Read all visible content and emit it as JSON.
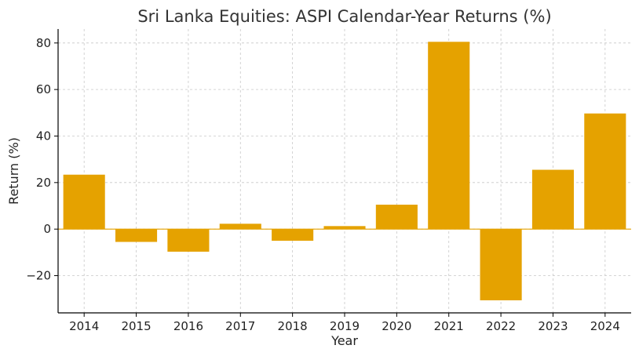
{
  "chart_data": {
    "type": "bar",
    "title": "Sri Lanka Equities: ASPI Calendar-Year Returns (%)",
    "xlabel": "Year",
    "ylabel": "Return (%)",
    "categories": [
      "2014",
      "2015",
      "2016",
      "2017",
      "2018",
      "2019",
      "2020",
      "2021",
      "2022",
      "2023",
      "2024"
    ],
    "values": [
      23.4,
      -5.5,
      -9.7,
      2.3,
      -5.0,
      1.3,
      10.5,
      80.5,
      -30.6,
      25.5,
      49.7
    ],
    "ylim": [
      -36,
      86
    ],
    "yticks": [
      -20,
      0,
      20,
      40,
      60,
      80
    ],
    "ytick_labels": [
      "−20",
      "0",
      "20",
      "40",
      "60",
      "80"
    ],
    "grid": true,
    "legend": "none",
    "colors": {
      "bar": "#E5A200",
      "zero_line": "#E5A200",
      "grid": "#c8c8c8"
    }
  }
}
